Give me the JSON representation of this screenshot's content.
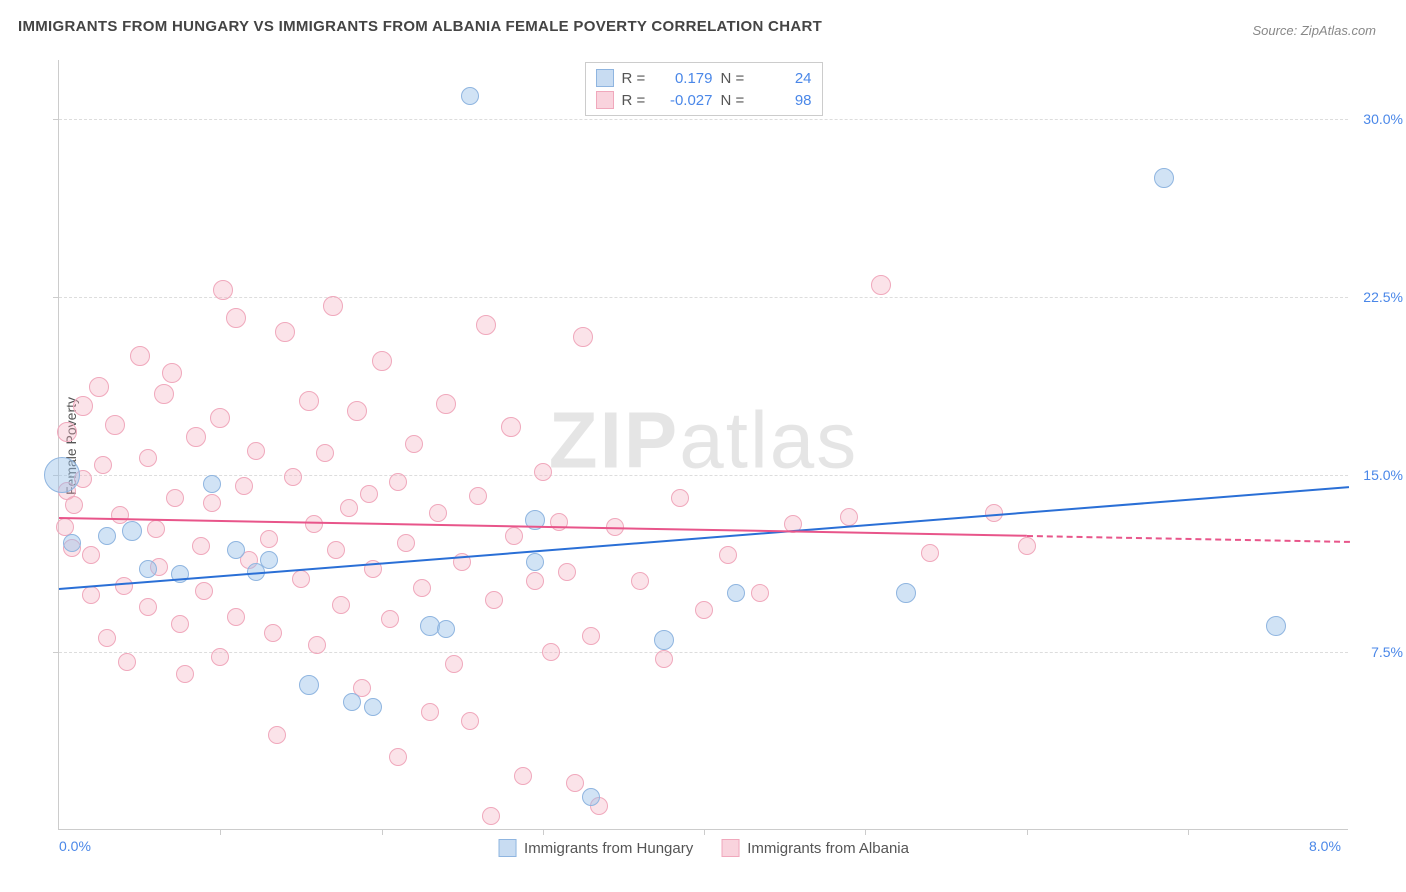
{
  "title": "IMMIGRANTS FROM HUNGARY VS IMMIGRANTS FROM ALBANIA FEMALE POVERTY CORRELATION CHART",
  "source": "Source: ZipAtlas.com",
  "ylabel": "Female Poverty",
  "watermark_a": "ZIP",
  "watermark_b": "atlas",
  "chart": {
    "type": "scatter",
    "xlim": [
      0,
      8
    ],
    "ylim": [
      0,
      32.5
    ],
    "xticks": [
      {
        "v": 0,
        "label": "0.0%"
      },
      {
        "v": 8,
        "label": "8.0%"
      }
    ],
    "xticks_minor": [
      1,
      2,
      3,
      4,
      5,
      6,
      7
    ],
    "yticks": [
      {
        "v": 7.5,
        "label": "7.5%"
      },
      {
        "v": 15.0,
        "label": "15.0%"
      },
      {
        "v": 22.5,
        "label": "22.5%"
      },
      {
        "v": 30.0,
        "label": "30.0%"
      }
    ],
    "background_color": "#ffffff",
    "grid_color": "#dddddd",
    "axis_color": "#cccccc",
    "series": [
      {
        "name": "Immigrants from Hungary",
        "color_fill": "rgba(154,192,232,0.45)",
        "color_stroke": "#8fb5e0",
        "trend_color": "#2a6fd6",
        "R": "0.179",
        "N": "24",
        "marker_radius_base": 9,
        "trend": {
          "x1": 0,
          "y1": 10.2,
          "x2": 8,
          "y2": 14.5,
          "solid_until_x": 8
        },
        "points": [
          {
            "x": 0.02,
            "y": 15.0,
            "r": 18
          },
          {
            "x": 2.55,
            "y": 31.0,
            "r": 9
          },
          {
            "x": 0.45,
            "y": 12.6,
            "r": 10
          },
          {
            "x": 0.3,
            "y": 12.4,
            "r": 9
          },
          {
            "x": 0.75,
            "y": 10.8,
            "r": 9
          },
          {
            "x": 0.95,
            "y": 14.6,
            "r": 9
          },
          {
            "x": 1.1,
            "y": 11.8,
            "r": 9
          },
          {
            "x": 1.22,
            "y": 10.9,
            "r": 9
          },
          {
            "x": 1.3,
            "y": 11.4,
            "r": 9
          },
          {
            "x": 1.55,
            "y": 6.1,
            "r": 10
          },
          {
            "x": 1.82,
            "y": 5.4,
            "r": 9
          },
          {
            "x": 1.95,
            "y": 5.2,
            "r": 9
          },
          {
            "x": 2.3,
            "y": 8.6,
            "r": 10
          },
          {
            "x": 2.4,
            "y": 8.5,
            "r": 9
          },
          {
            "x": 2.95,
            "y": 13.1,
            "r": 10
          },
          {
            "x": 2.95,
            "y": 11.3,
            "r": 9
          },
          {
            "x": 3.3,
            "y": 1.4,
            "r": 9
          },
          {
            "x": 3.75,
            "y": 8.0,
            "r": 10
          },
          {
            "x": 4.2,
            "y": 10.0,
            "r": 9
          },
          {
            "x": 5.25,
            "y": 10.0,
            "r": 10
          },
          {
            "x": 6.85,
            "y": 27.5,
            "r": 10
          },
          {
            "x": 7.55,
            "y": 8.6,
            "r": 10
          },
          {
            "x": 0.08,
            "y": 12.1,
            "r": 9
          },
          {
            "x": 0.55,
            "y": 11.0,
            "r": 9
          }
        ]
      },
      {
        "name": "Immigrants from Albania",
        "color_fill": "rgba(244,174,193,0.35)",
        "color_stroke": "#f0a8bc",
        "trend_color": "#e8558a",
        "R": "-0.027",
        "N": "98",
        "marker_radius_base": 9,
        "trend": {
          "x1": 0,
          "y1": 13.2,
          "x2": 8,
          "y2": 12.2,
          "solid_until_x": 6.0
        },
        "points": [
          {
            "x": 0.04,
            "y": 12.8,
            "r": 9
          },
          {
            "x": 0.05,
            "y": 16.8,
            "r": 10
          },
          {
            "x": 0.05,
            "y": 14.3,
            "r": 9
          },
          {
            "x": 0.08,
            "y": 11.9,
            "r": 9
          },
          {
            "x": 0.09,
            "y": 13.7,
            "r": 9
          },
          {
            "x": 0.15,
            "y": 17.9,
            "r": 10
          },
          {
            "x": 0.15,
            "y": 14.8,
            "r": 9
          },
          {
            "x": 0.2,
            "y": 11.6,
            "r": 9
          },
          {
            "x": 0.2,
            "y": 9.9,
            "r": 9
          },
          {
            "x": 0.25,
            "y": 18.7,
            "r": 10
          },
          {
            "x": 0.27,
            "y": 15.4,
            "r": 9
          },
          {
            "x": 0.3,
            "y": 8.1,
            "r": 9
          },
          {
            "x": 0.35,
            "y": 17.1,
            "r": 10
          },
          {
            "x": 0.38,
            "y": 13.3,
            "r": 9
          },
          {
            "x": 0.4,
            "y": 10.3,
            "r": 9
          },
          {
            "x": 0.42,
            "y": 7.1,
            "r": 9
          },
          {
            "x": 0.5,
            "y": 20.0,
            "r": 10
          },
          {
            "x": 0.55,
            "y": 15.7,
            "r": 9
          },
          {
            "x": 0.55,
            "y": 9.4,
            "r": 9
          },
          {
            "x": 0.6,
            "y": 12.7,
            "r": 9
          },
          {
            "x": 0.62,
            "y": 11.1,
            "r": 9
          },
          {
            "x": 0.65,
            "y": 18.4,
            "r": 10
          },
          {
            "x": 0.7,
            "y": 19.3,
            "r": 10
          },
          {
            "x": 0.72,
            "y": 14.0,
            "r": 9
          },
          {
            "x": 0.75,
            "y": 8.7,
            "r": 9
          },
          {
            "x": 0.78,
            "y": 6.6,
            "r": 9
          },
          {
            "x": 0.85,
            "y": 16.6,
            "r": 10
          },
          {
            "x": 0.88,
            "y": 12.0,
            "r": 9
          },
          {
            "x": 0.9,
            "y": 10.1,
            "r": 9
          },
          {
            "x": 0.95,
            "y": 13.8,
            "r": 9
          },
          {
            "x": 1.0,
            "y": 17.4,
            "r": 10
          },
          {
            "x": 1.0,
            "y": 7.3,
            "r": 9
          },
          {
            "x": 1.02,
            "y": 22.8,
            "r": 10
          },
          {
            "x": 1.1,
            "y": 21.6,
            "r": 10
          },
          {
            "x": 1.1,
            "y": 9.0,
            "r": 9
          },
          {
            "x": 1.15,
            "y": 14.5,
            "r": 9
          },
          {
            "x": 1.18,
            "y": 11.4,
            "r": 9
          },
          {
            "x": 1.22,
            "y": 16.0,
            "r": 9
          },
          {
            "x": 1.3,
            "y": 12.3,
            "r": 9
          },
          {
            "x": 1.33,
            "y": 8.3,
            "r": 9
          },
          {
            "x": 1.35,
            "y": 4.0,
            "r": 9
          },
          {
            "x": 1.4,
            "y": 21.0,
            "r": 10
          },
          {
            "x": 1.45,
            "y": 14.9,
            "r": 9
          },
          {
            "x": 1.5,
            "y": 10.6,
            "r": 9
          },
          {
            "x": 1.55,
            "y": 18.1,
            "r": 10
          },
          {
            "x": 1.58,
            "y": 12.9,
            "r": 9
          },
          {
            "x": 1.6,
            "y": 7.8,
            "r": 9
          },
          {
            "x": 1.65,
            "y": 15.9,
            "r": 9
          },
          {
            "x": 1.7,
            "y": 22.1,
            "r": 10
          },
          {
            "x": 1.72,
            "y": 11.8,
            "r": 9
          },
          {
            "x": 1.75,
            "y": 9.5,
            "r": 9
          },
          {
            "x": 1.8,
            "y": 13.6,
            "r": 9
          },
          {
            "x": 1.85,
            "y": 17.7,
            "r": 10
          },
          {
            "x": 1.88,
            "y": 6.0,
            "r": 9
          },
          {
            "x": 1.92,
            "y": 14.2,
            "r": 9
          },
          {
            "x": 1.95,
            "y": 11.0,
            "r": 9
          },
          {
            "x": 2.0,
            "y": 19.8,
            "r": 10
          },
          {
            "x": 2.05,
            "y": 8.9,
            "r": 9
          },
          {
            "x": 2.1,
            "y": 3.1,
            "r": 9
          },
          {
            "x": 2.1,
            "y": 14.7,
            "r": 9
          },
          {
            "x": 2.15,
            "y": 12.1,
            "r": 9
          },
          {
            "x": 2.2,
            "y": 16.3,
            "r": 9
          },
          {
            "x": 2.25,
            "y": 10.2,
            "r": 9
          },
          {
            "x": 2.3,
            "y": 5.0,
            "r": 9
          },
          {
            "x": 2.35,
            "y": 13.4,
            "r": 9
          },
          {
            "x": 2.4,
            "y": 18.0,
            "r": 10
          },
          {
            "x": 2.45,
            "y": 7.0,
            "r": 9
          },
          {
            "x": 2.5,
            "y": 11.3,
            "r": 9
          },
          {
            "x": 2.55,
            "y": 4.6,
            "r": 9
          },
          {
            "x": 2.6,
            "y": 14.1,
            "r": 9
          },
          {
            "x": 2.65,
            "y": 21.3,
            "r": 10
          },
          {
            "x": 2.68,
            "y": 0.6,
            "r": 9
          },
          {
            "x": 2.7,
            "y": 9.7,
            "r": 9
          },
          {
            "x": 2.8,
            "y": 17.0,
            "r": 10
          },
          {
            "x": 2.82,
            "y": 12.4,
            "r": 9
          },
          {
            "x": 2.88,
            "y": 2.3,
            "r": 9
          },
          {
            "x": 2.95,
            "y": 10.5,
            "r": 9
          },
          {
            "x": 3.0,
            "y": 15.1,
            "r": 9
          },
          {
            "x": 3.05,
            "y": 7.5,
            "r": 9
          },
          {
            "x": 3.1,
            "y": 13.0,
            "r": 9
          },
          {
            "x": 3.15,
            "y": 10.9,
            "r": 9
          },
          {
            "x": 3.2,
            "y": 2.0,
            "r": 9
          },
          {
            "x": 3.25,
            "y": 20.8,
            "r": 10
          },
          {
            "x": 3.3,
            "y": 8.2,
            "r": 9
          },
          {
            "x": 3.35,
            "y": 1.0,
            "r": 9
          },
          {
            "x": 3.45,
            "y": 12.8,
            "r": 9
          },
          {
            "x": 3.6,
            "y": 10.5,
            "r": 9
          },
          {
            "x": 3.75,
            "y": 7.2,
            "r": 9
          },
          {
            "x": 3.85,
            "y": 14.0,
            "r": 9
          },
          {
            "x": 4.0,
            "y": 9.3,
            "r": 9
          },
          {
            "x": 4.15,
            "y": 11.6,
            "r": 9
          },
          {
            "x": 4.35,
            "y": 10.0,
            "r": 9
          },
          {
            "x": 4.55,
            "y": 12.9,
            "r": 9
          },
          {
            "x": 4.9,
            "y": 13.2,
            "r": 9
          },
          {
            "x": 5.1,
            "y": 23.0,
            "r": 10
          },
          {
            "x": 5.4,
            "y": 11.7,
            "r": 9
          },
          {
            "x": 5.8,
            "y": 13.4,
            "r": 9
          },
          {
            "x": 6.0,
            "y": 12.0,
            "r": 9
          }
        ]
      }
    ]
  },
  "legend_top": {
    "rows": [
      {
        "swatch": "blue",
        "r_label": "R =",
        "r_val": "0.179",
        "n_label": "N =",
        "n_val": "24"
      },
      {
        "swatch": "pink",
        "r_label": "R =",
        "r_val": "-0.027",
        "n_label": "N =",
        "n_val": "98"
      }
    ]
  },
  "legend_bottom": {
    "items": [
      {
        "swatch": "blue",
        "label": "Immigrants from Hungary"
      },
      {
        "swatch": "pink",
        "label": "Immigrants from Albania"
      }
    ]
  }
}
